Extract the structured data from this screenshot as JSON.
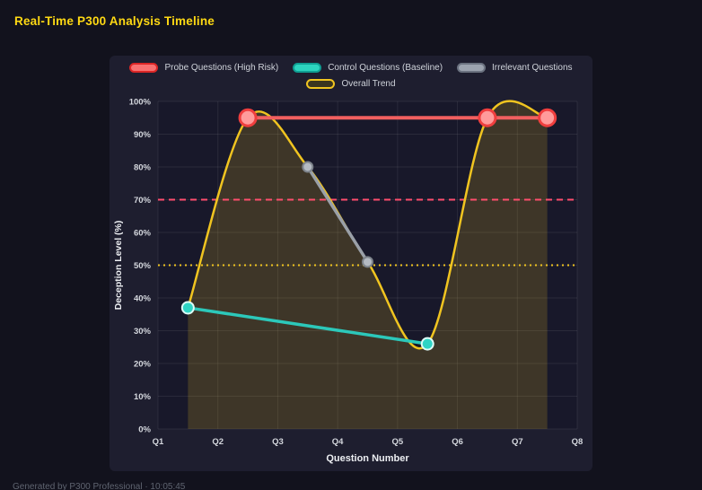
{
  "page": {
    "title": "Real-Time P300 Analysis Timeline",
    "footer": "Generated by P300 Professional · 10:05:45"
  },
  "chart_data": {
    "type": "line",
    "title": "Real-Time P300 Analysis Timeline",
    "xlabel": "Question Number",
    "ylabel": "Deception Level (%)",
    "xlim": [
      1,
      8
    ],
    "ylim": [
      0,
      100
    ],
    "grid": true,
    "legend_position": "top",
    "x_tick_labels": [
      "Q1",
      "Q2",
      "Q3",
      "Q4",
      "Q5",
      "Q6",
      "Q7",
      "Q8"
    ],
    "y_tick_values": [
      0,
      10,
      20,
      30,
      40,
      50,
      60,
      70,
      80,
      90,
      100
    ],
    "y_tick_labels": [
      "0%",
      "10%",
      "20%",
      "30%",
      "40%",
      "50%",
      "60%",
      "70%",
      "80%",
      "90%",
      "100%"
    ],
    "colors": {
      "page_bg": "#12121d",
      "panel_bg": "#1e1e2f",
      "plot_bg": "#18182a",
      "grid": "rgba(255,255,255,0.08)",
      "tick": "#d4d7dd",
      "axis_title": "#eceef2",
      "title": "#ffd913"
    },
    "series": [
      {
        "id": "probe",
        "name": "Probe Questions (High Risk)",
        "color": "#f15f5f",
        "line_width": 4,
        "legend_fill": "#f87171",
        "legend_border": "#dc2626",
        "marker": {
          "radius": 9,
          "fill": "#ff9b9b",
          "stroke": "#ef3e3e",
          "stroke_width": 3
        },
        "points": [
          {
            "x": 2.5,
            "y": 95
          },
          {
            "x": 6.5,
            "y": 95
          },
          {
            "x": 7.5,
            "y": 95
          }
        ]
      },
      {
        "id": "control",
        "name": "Control Questions (Baseline)",
        "color": "#2cc8ba",
        "line_width": 3.5,
        "legend_fill": "#2dd4bf",
        "legend_border": "#0f9f93",
        "marker": {
          "radius": 6.5,
          "fill": "#2fd4c4",
          "stroke": "#ddfcf7",
          "stroke_width": 2
        },
        "points": [
          {
            "x": 1.5,
            "y": 37
          },
          {
            "x": 5.5,
            "y": 26
          }
        ]
      },
      {
        "id": "irrelevant",
        "name": "Irrelevant Questions",
        "color": "#9aa0a8",
        "line_width": 3.5,
        "legend_fill": "#9ca3af",
        "legend_border": "#6b7280",
        "marker": {
          "radius": 5.5,
          "fill": "#b4bac2",
          "stroke": "#7d838b",
          "stroke_width": 2
        },
        "points": [
          {
            "x": 3.5,
            "y": 80
          },
          {
            "x": 4.5,
            "y": 51
          }
        ]
      },
      {
        "id": "trend",
        "name": "Overall Trend",
        "color": "#f0c420",
        "line_width": 2.5,
        "smooth": true,
        "fill_opacity": 0.18,
        "legend_fill": "#3a351f",
        "legend_border": "#f0c420",
        "points": [
          {
            "x": 1.5,
            "y": 37
          },
          {
            "x": 2.5,
            "y": 95
          },
          {
            "x": 3.5,
            "y": 80
          },
          {
            "x": 4.5,
            "y": 51
          },
          {
            "x": 5.5,
            "y": 26
          },
          {
            "x": 6.5,
            "y": 95
          },
          {
            "x": 7.5,
            "y": 95
          }
        ]
      }
    ],
    "reference_lines": [
      {
        "id": "high-risk-threshold-line",
        "y": 70,
        "color": "#ff4d6d",
        "width": 2,
        "dash": [
          7,
          5
        ]
      },
      {
        "id": "baseline-threshold-line",
        "y": 50,
        "color": "#f0c420",
        "width": 2,
        "dash": [
          2,
          4
        ]
      }
    ]
  }
}
